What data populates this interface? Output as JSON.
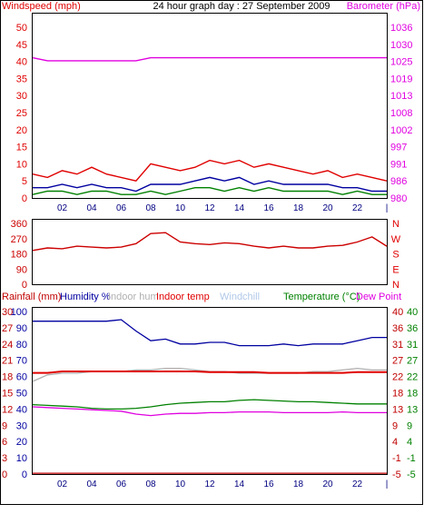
{
  "title": "24 hour graph day : 27 September 2009",
  "colors": {
    "bg": "#ffffff",
    "frame": "#000000",
    "red": "#e00000",
    "dkred": "#c00000",
    "magenta": "#e000e0",
    "navy": "#0000a0",
    "green": "#008000",
    "gray": "#b0b0b0",
    "lightblue": "#b0c8e8",
    "darkred": "#cc0000"
  },
  "time_ticks": [
    "02",
    "04",
    "06",
    "08",
    "10",
    "12",
    "14",
    "16",
    "18",
    "20",
    "22",
    "|"
  ],
  "chart_data": [
    {
      "id": "wind-baro",
      "type": "line",
      "title": "24 hour graph day : 27 September 2009",
      "ylabel_left": "Windspeed (mph)",
      "ylabel_right": "Barometer (hPa)",
      "ylim_left": [
        0,
        50
      ],
      "left_ticks": [
        "0",
        "5",
        "10",
        "15",
        "20",
        "25",
        "30",
        "35",
        "40",
        "45",
        "50"
      ],
      "ylim_right": [
        980,
        1036
      ],
      "right_ticks": [
        "980",
        "986",
        "991",
        "997",
        "1002",
        "1008",
        "1013",
        "1019",
        "1025",
        "1030",
        "1036"
      ],
      "x": [
        0,
        1,
        2,
        3,
        4,
        5,
        6,
        7,
        8,
        9,
        10,
        11,
        12,
        13,
        14,
        15,
        16,
        17,
        18,
        19,
        20,
        21,
        22,
        23,
        24
      ],
      "series": [
        {
          "name": "Barometer (hPa)",
          "axis": "right",
          "color": "#e000e0",
          "values": [
            1026,
            1025,
            1025,
            1025,
            1025,
            1025,
            1025,
            1025,
            1026,
            1026,
            1026,
            1026,
            1026,
            1026,
            1026,
            1026,
            1026,
            1026,
            1026,
            1026,
            1026,
            1026,
            1026,
            1026,
            1026
          ]
        },
        {
          "color": "#e00000",
          "axis": "left",
          "values": [
            7,
            6,
            8,
            7,
            9,
            7,
            6,
            5,
            10,
            9,
            8,
            9,
            11,
            10,
            11,
            9,
            10,
            9,
            8,
            7,
            8,
            6,
            7,
            6,
            5
          ]
        },
        {
          "color": "#0000a0",
          "axis": "left",
          "values": [
            3,
            3,
            4,
            3,
            4,
            3,
            3,
            2,
            4,
            4,
            4,
            5,
            6,
            5,
            6,
            4,
            5,
            4,
            4,
            4,
            4,
            3,
            3,
            2,
            2
          ]
        },
        {
          "color": "#008000",
          "axis": "left",
          "values": [
            1,
            2,
            2,
            1,
            2,
            2,
            1,
            1,
            2,
            1,
            2,
            3,
            3,
            2,
            3,
            2,
            3,
            2,
            2,
            2,
            2,
            1,
            2,
            1,
            1
          ]
        }
      ]
    },
    {
      "id": "wind-dir",
      "type": "line",
      "ylim_left": [
        0,
        360
      ],
      "left_ticks": [
        "0",
        "90",
        "180",
        "270",
        "360"
      ],
      "right_ticks": [
        "N",
        "E",
        "S",
        "W",
        "N"
      ],
      "x": [
        0,
        1,
        2,
        3,
        4,
        5,
        6,
        7,
        8,
        9,
        10,
        11,
        12,
        13,
        14,
        15,
        16,
        17,
        18,
        19,
        20,
        21,
        22,
        23,
        24
      ],
      "series": [
        {
          "color": "#cc0000",
          "values": [
            200,
            215,
            210,
            225,
            220,
            215,
            220,
            240,
            300,
            305,
            250,
            240,
            235,
            245,
            240,
            225,
            215,
            225,
            215,
            215,
            225,
            230,
            250,
            280,
            225
          ]
        }
      ]
    },
    {
      "id": "temp-hum",
      "type": "line",
      "legend": [
        {
          "text": "Rainfall (mm)",
          "color": "#c00000"
        },
        {
          "text": "Humidity %",
          "color": "#0000a0"
        },
        {
          "text": "Indoor hum",
          "color": "#b0b0b0"
        },
        {
          "text": "Indoor temp",
          "color": "#e00000"
        },
        {
          "text": "Windchill",
          "color": "#b0c8e8"
        },
        {
          "text": "Temperature (°C)",
          "color": "#008000"
        },
        {
          "text": "Dew Point",
          "color": "#e000e0"
        }
      ],
      "rain_ticks": [
        "0",
        "3",
        "6",
        "9",
        "12",
        "15",
        "18",
        "21",
        "24",
        "27",
        "30"
      ],
      "ylim_hum": [
        0,
        100
      ],
      "hum_ticks": [
        "0",
        "10",
        "20",
        "30",
        "40",
        "50",
        "60",
        "70",
        "80",
        "90",
        "100"
      ],
      "ylim_temp": [
        -5,
        40
      ],
      "temp_ticks_inner": [
        "-5",
        "-1",
        "4",
        "9",
        "13",
        "18",
        "22",
        "27",
        "31",
        "36",
        "40"
      ],
      "temp_ticks_outer": [
        "-5",
        "-1",
        "4",
        "9",
        "13",
        "18",
        "22",
        "27",
        "31",
        "36",
        "40"
      ],
      "x": [
        0,
        1,
        2,
        3,
        4,
        5,
        6,
        7,
        8,
        9,
        10,
        11,
        12,
        13,
        14,
        15,
        16,
        17,
        18,
        19,
        20,
        21,
        22,
        23,
        24
      ],
      "series": [
        {
          "name": "Humidity %",
          "axis": "hum",
          "color": "#0000a0",
          "values": [
            94,
            94,
            94,
            94,
            94,
            94,
            95,
            88,
            82,
            83,
            80,
            80,
            81,
            81,
            79,
            79,
            79,
            80,
            79,
            80,
            80,
            80,
            82,
            84,
            84
          ]
        },
        {
          "name": "Indoor hum",
          "axis": "hum",
          "color": "#b0b0b0",
          "values": [
            57,
            61,
            62,
            62,
            63,
            63,
            63,
            64,
            64,
            65,
            65,
            64,
            63,
            63,
            62,
            62,
            62,
            62,
            62,
            63,
            63,
            64,
            65,
            64,
            64
          ]
        },
        {
          "name": "Indoor temp",
          "axis": "temp",
          "color": "#e00000",
          "values": [
            23,
            23,
            23.4,
            23.4,
            23.4,
            23.4,
            23.4,
            23.4,
            23.4,
            23.4,
            23.4,
            23.4,
            23.2,
            23.2,
            23.2,
            23.2,
            23,
            23,
            23,
            23,
            23,
            23,
            23.2,
            23.2,
            23.2
          ]
        },
        {
          "name": "Temperature (°C)",
          "axis": "temp",
          "color": "#008000",
          "values": [
            14.2,
            14,
            13.8,
            13.6,
            13.2,
            13,
            13,
            13.2,
            13.6,
            14.2,
            14.6,
            14.8,
            15,
            15,
            15.4,
            15.6,
            15.4,
            15.2,
            15,
            15,
            14.8,
            14.6,
            14.4,
            14.4,
            14.4
          ]
        },
        {
          "name": "Dew Point",
          "axis": "temp",
          "color": "#e000e0",
          "values": [
            13.6,
            13.4,
            13.2,
            13,
            12.8,
            12.6,
            12.4,
            11.6,
            11.2,
            11.6,
            11.8,
            11.8,
            12,
            12,
            12.2,
            12.2,
            12.2,
            12,
            12,
            12,
            12,
            12.2,
            12,
            12,
            12
          ]
        },
        {
          "name": "Rainfall (mm)",
          "axis": "hum",
          "color": "#c00000",
          "values": [
            0.5,
            0.5,
            0.5,
            0.5,
            0.5,
            0.5,
            0.5,
            0.5,
            0.5,
            0.5,
            0.5,
            0.5,
            0.5,
            0.5,
            0.5,
            0.5,
            0.5,
            0.5,
            0.5,
            0.5,
            0.5,
            0.5,
            0.5,
            0.5,
            0.5
          ]
        }
      ]
    }
  ]
}
